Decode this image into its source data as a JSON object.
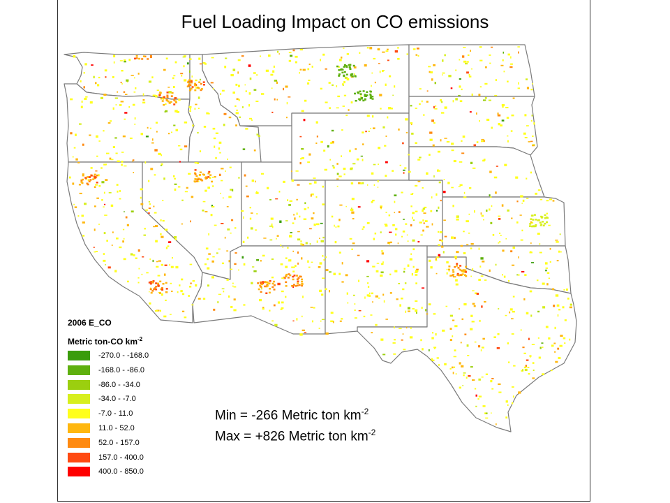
{
  "title": "Fuel Loading Impact on CO emissions",
  "legend": {
    "heading": "2006  E_CO",
    "units_main": "Metric ton-CO km",
    "units_exp": "-2",
    "classes": [
      {
        "label": "-270.0 - -168.0",
        "color": "#3a9c0c"
      },
      {
        "label": "-168.0 - -86.0",
        "color": "#5fb00f"
      },
      {
        "label": "-86.0 - -34.0",
        "color": "#9bcf0f"
      },
      {
        "label": "-34.0 - -7.0",
        "color": "#d7ef1e"
      },
      {
        "label": "-7.0 - 11.0",
        "color": "#ffff1c"
      },
      {
        "label": "11.0 - 52.0",
        "color": "#ffb70f"
      },
      {
        "label": "52.0 - 157.0",
        "color": "#ff8a11"
      },
      {
        "label": "157.0 - 400.0",
        "color": "#ff4a12"
      },
      {
        "label": "400.0 - 850.0",
        "color": "#ff0000"
      }
    ]
  },
  "stats": {
    "min_label": "Min = ",
    "min_value": "-266 Metric ton km",
    "max_label": "Max = ",
    "max_value": "+826 Metric ton km",
    "exp": "-2"
  }
}
